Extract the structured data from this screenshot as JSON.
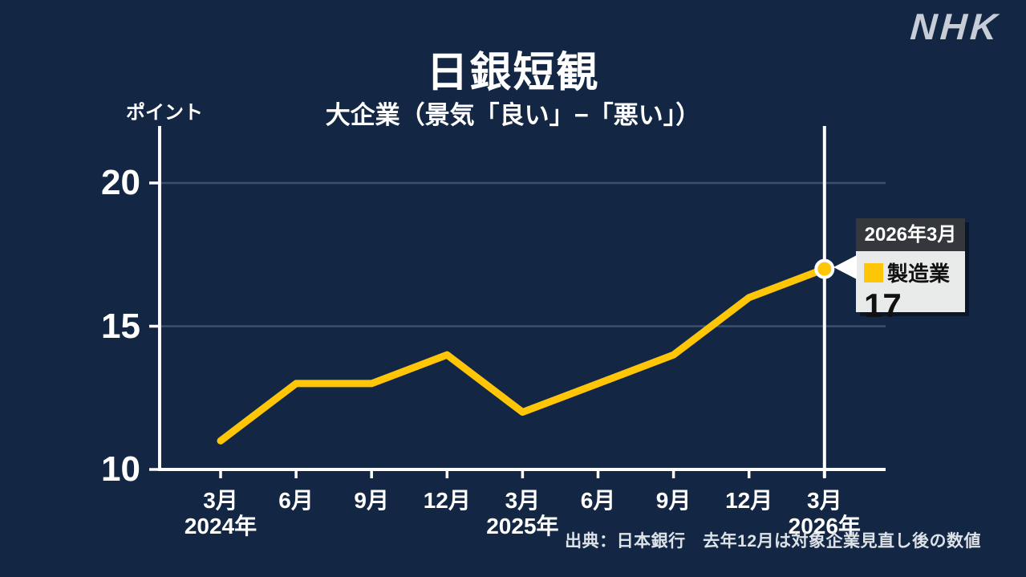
{
  "branding": {
    "logo": "NHK"
  },
  "colors": {
    "background": "#132744",
    "accent_yellow": "#ffc608",
    "axis_white": "#ffffff",
    "grid": "rgba(190,205,225,0.25)",
    "tooltip_header_bg": "#34383c",
    "tooltip_body_bg": "#e9eaea",
    "logo_gray": "#c6cdd6"
  },
  "chart_data": {
    "type": "line",
    "title": "日銀短観",
    "subtitle": "大企業（景気「良い」−「悪い」）",
    "unit_label": "ポイント",
    "x_tick_labels": [
      "3月",
      "6月",
      "9月",
      "12月",
      "3月",
      "6月",
      "9月",
      "12月",
      "3月"
    ],
    "x_year_labels": [
      {
        "index": 0,
        "label": "2024年"
      },
      {
        "index": 4,
        "label": "2025年"
      },
      {
        "index": 8,
        "label": "2026年"
      }
    ],
    "y_ticks": [
      10,
      15,
      20
    ],
    "ylim": [
      10,
      22
    ],
    "grid": "horizontal-faint",
    "series": [
      {
        "name": "製造業",
        "values": [
          11,
          13,
          13,
          14,
          12,
          13,
          14,
          16,
          17
        ]
      }
    ],
    "highlight": {
      "index": 8,
      "label": "2026年3月",
      "series_swatch": "yellow-square",
      "series": "製造業",
      "value": "17"
    },
    "source": "出典：日本銀行　去年12月は対象企業見直し後の数値"
  }
}
